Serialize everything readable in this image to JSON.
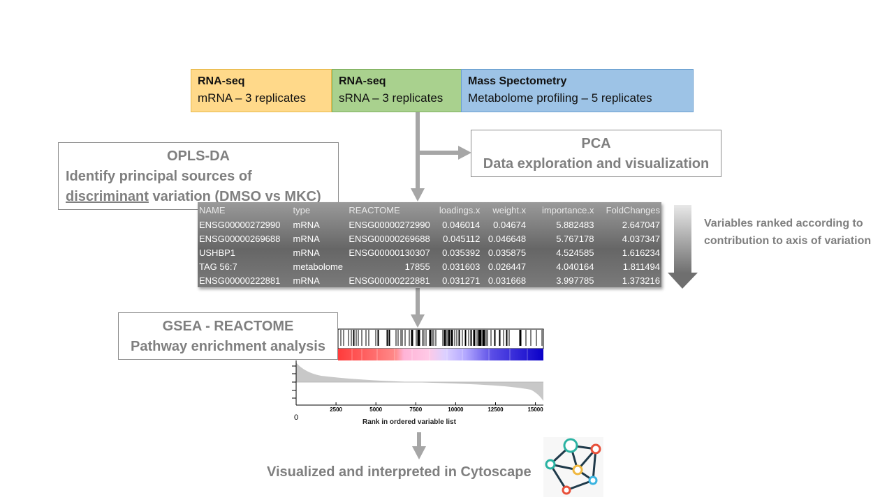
{
  "inputs": [
    {
      "title": "RNA-seq",
      "subtitle": "mRNA – 3 replicates",
      "color": "#ffd98a",
      "border": "#e8b94a"
    },
    {
      "title": "RNA-seq",
      "subtitle": "sRNA – 3 replicates",
      "color": "#a9d18e",
      "border": "#7fb05e"
    },
    {
      "title": "Mass Spectometry",
      "subtitle": "Metabolome  profiling – 5 replicates",
      "color": "#9dc3e6",
      "border": "#6a9fd0"
    }
  ],
  "pca": {
    "title": "PCA",
    "subtitle": "Data exploration and visualization"
  },
  "oplsda": {
    "title": "OPLS-DA",
    "line1": "Identify principal sources of",
    "line2_underlined": "discriminant",
    "line2_rest": " variation (DMSO vs MKC)"
  },
  "table": {
    "headers": [
      "NAME",
      "type",
      "REACTOME",
      "loadings.x",
      "weight.x",
      "importance.x",
      "FoldChanges"
    ],
    "rows": [
      [
        "ENSG00000272990",
        "mRNA",
        "ENSG00000272990",
        "0.046014",
        "0.04674",
        "5.882483",
        "2.647047"
      ],
      [
        "ENSG00000269688",
        "mRNA",
        "ENSG00000269688",
        "0.045112",
        "0.046648",
        "5.767178",
        "4.037347"
      ],
      [
        "USHBP1",
        "mRNA",
        "ENSG00000130307",
        "0.035392",
        "0.035875",
        "4.524585",
        "1.616234"
      ],
      [
        "TAG 56:7",
        "metabolome",
        "17855",
        "0.031603",
        "0.026447",
        "4.040164",
        "1.811494"
      ],
      [
        "ENSG00000222881",
        "mRNA",
        "ENSG00000222881",
        "0.031271",
        "0.031668",
        "3.997785",
        "1.373216"
      ]
    ]
  },
  "ranked_text": "Variables ranked according to contribution  to axis of variation",
  "gsea": {
    "title": "GSEA - REACTOME",
    "subtitle": "Pathway enrichment analysis",
    "xlabel": "Rank in ordered variable list",
    "origin_label": "0",
    "ticks": [
      2500,
      5000,
      7500,
      10000,
      12500,
      15000
    ],
    "x_max": 15500
  },
  "cytoscape": {
    "label": "Visualized and interpreted in Cytoscape",
    "icon": "network-icon"
  },
  "colors": {
    "arrow": "#a6a6a6",
    "text_gray": "#7f7f7f"
  }
}
